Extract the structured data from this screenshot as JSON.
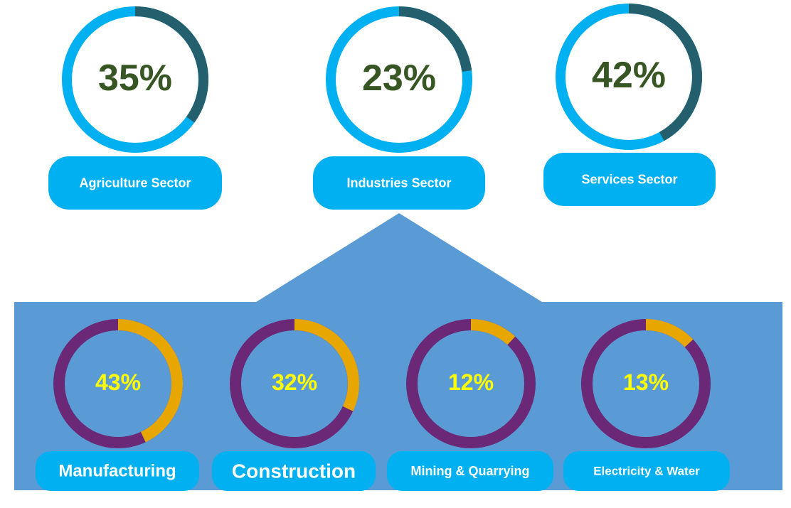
{
  "chart_data": [
    {
      "type": "donut",
      "title": "Agriculture Sector",
      "values": [
        35
      ],
      "value_labels": [
        "35%"
      ],
      "color": "#245f6e",
      "track_color": "#00b0f0"
    },
    {
      "type": "donut",
      "title": "Industries Sector",
      "values": [
        23
      ],
      "value_labels": [
        "23%"
      ],
      "color": "#245f6e",
      "track_color": "#00b0f0"
    },
    {
      "type": "donut",
      "title": "Services Sector",
      "values": [
        42
      ],
      "value_labels": [
        "42%"
      ],
      "color": "#245f6e",
      "track_color": "#00b0f0"
    },
    {
      "type": "donut",
      "title": "Manufacturing",
      "values": [
        43
      ],
      "value_labels": [
        "43%"
      ],
      "color": "#e8a700",
      "track_color": "#6a2877"
    },
    {
      "type": "donut",
      "title": "Construction",
      "values": [
        32
      ],
      "value_labels": [
        "32%"
      ],
      "color": "#e8a700",
      "track_color": "#6a2877"
    },
    {
      "type": "donut",
      "title": "Mining & Quarrying",
      "values": [
        12
      ],
      "value_labels": [
        "12%"
      ],
      "color": "#e8a700",
      "track_color": "#6a2877"
    },
    {
      "type": "donut",
      "title": "Electricity & Water",
      "values": [
        13
      ],
      "value_labels": [
        "13%"
      ],
      "color": "#e8a700",
      "track_color": "#6a2877"
    }
  ]
}
